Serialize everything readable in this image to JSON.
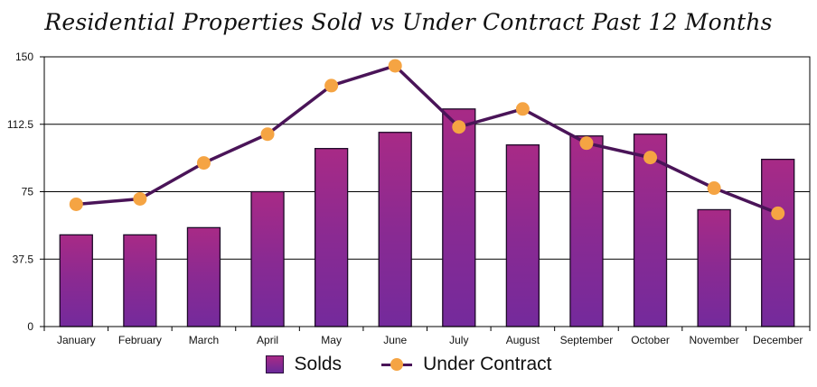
{
  "chart_data": {
    "type": "bar",
    "title": "Residential Properties Sold vs Under Contract Past 12 Months",
    "categories": [
      "January",
      "February",
      "March",
      "April",
      "May",
      "June",
      "July",
      "August",
      "September",
      "October",
      "November",
      "December"
    ],
    "series": [
      {
        "name": "Solds",
        "type": "bar",
        "color": "#8a2a92",
        "values": [
          51,
          51,
          55,
          75,
          99,
          108,
          121,
          101,
          106,
          107,
          65,
          93
        ]
      },
      {
        "name": "Under Contract",
        "type": "line",
        "color": "#4a1458",
        "marker_color": "#f5a443",
        "values": [
          68,
          71,
          91,
          107,
          134,
          145,
          111,
          121,
          102,
          94,
          77,
          63
        ]
      }
    ],
    "ylim": [
      0,
      150
    ],
    "yticks": [
      "0",
      "37.5",
      "75",
      "112.5",
      "150"
    ],
    "ytick_values": [
      0,
      37.5,
      75,
      112.5,
      150
    ],
    "xlabel": "",
    "ylabel": "",
    "grid": true,
    "legend_position": "bottom"
  }
}
